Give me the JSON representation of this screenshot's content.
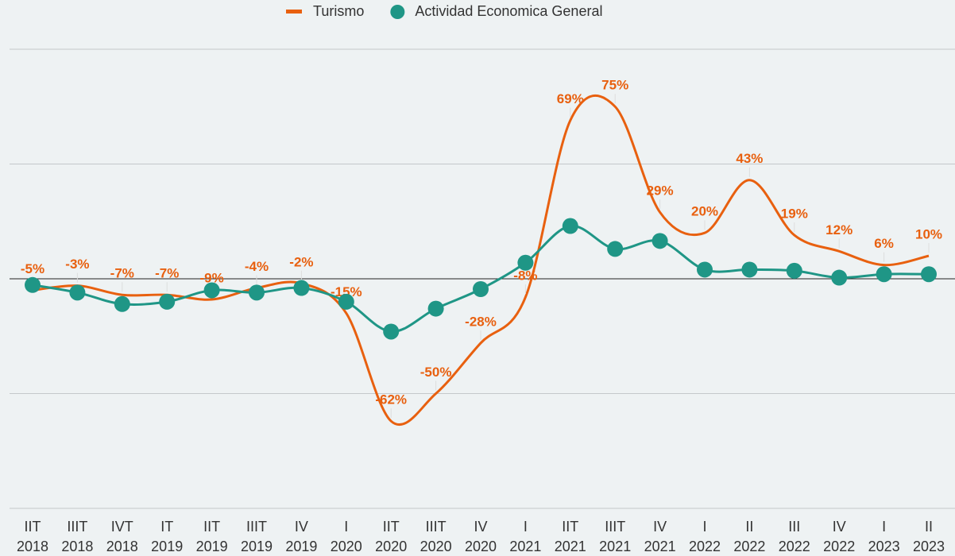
{
  "chart_data": {
    "type": "line",
    "categories": [
      [
        "IIT",
        "2018"
      ],
      [
        "IIIT",
        "2018"
      ],
      [
        "IVT",
        "2018"
      ],
      [
        "IT",
        "2019"
      ],
      [
        "IIT",
        "2019"
      ],
      [
        "IIIT",
        "2019"
      ],
      [
        "IV",
        "2019"
      ],
      [
        "I",
        "2020"
      ],
      [
        "IIT",
        "2020"
      ],
      [
        "IIIT",
        "2020"
      ],
      [
        "IV",
        "2020"
      ],
      [
        "I",
        "2021"
      ],
      [
        "IIT",
        "2021"
      ],
      [
        "IIIT",
        "2021"
      ],
      [
        "IV",
        "2021"
      ],
      [
        "I",
        "2022"
      ],
      [
        "II",
        "2022"
      ],
      [
        "III",
        "2022"
      ],
      [
        "IV",
        "2022"
      ],
      [
        "I",
        "2023"
      ],
      [
        "II",
        "2023"
      ]
    ],
    "series": [
      {
        "name": "Turismo",
        "color": "#e8600f",
        "values": [
          -5,
          -3,
          -7,
          -7,
          -9,
          -4,
          -2,
          -15,
          -62,
          -50,
          -28,
          -8,
          69,
          75,
          29,
          20,
          43,
          19,
          12,
          6,
          10
        ],
        "value_labels": [
          "-5%",
          "-3%",
          "-7%",
          "-7%",
          "-9%",
          "-4%",
          "-2%",
          "-15%",
          "-62%",
          "-50%",
          "-28%",
          "-8%",
          "69%",
          "75%",
          "29%",
          "20%",
          "43%",
          "19%",
          "12%",
          "6%",
          "10%"
        ]
      },
      {
        "name": "Actividad Economica General",
        "color": "#1f9686",
        "values": [
          -2.7,
          -6,
          -11,
          -10,
          -5,
          -6,
          -4,
          -10,
          -23,
          -13,
          -4.5,
          7,
          23,
          13,
          16.5,
          4,
          4,
          3.5,
          0.5,
          2,
          2
        ]
      }
    ],
    "ylim": [
      -100,
      100
    ],
    "yticks": [
      -100,
      -50,
      0,
      50,
      100
    ],
    "grid": true
  }
}
